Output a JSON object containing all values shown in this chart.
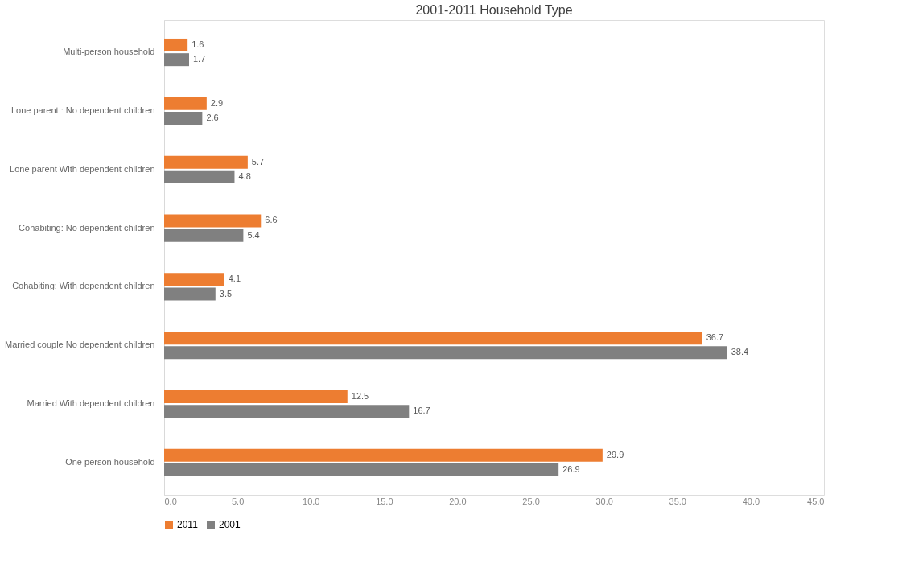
{
  "chart_data": {
    "type": "bar",
    "orientation": "horizontal",
    "title": "2001-2011 Household Type",
    "categories": [
      "Multi-person household",
      "Lone parent : No dependent children",
      "Lone parent With dependent children",
      "Cohabiting: No dependent children",
      "Cohabiting: With dependent children",
      "Married couple No dependent children",
      "Married  With dependent children",
      "One person household"
    ],
    "series": [
      {
        "name": "2011",
        "color": "#ed7d31",
        "values": [
          1.6,
          2.9,
          5.7,
          6.6,
          4.1,
          36.7,
          12.5,
          29.9
        ]
      },
      {
        "name": "2001",
        "color": "#808080",
        "values": [
          1.7,
          2.6,
          4.8,
          5.4,
          3.5,
          38.4,
          16.7,
          26.9
        ]
      }
    ],
    "xlim": [
      0,
      45
    ],
    "xticks": [
      {
        "value": 0,
        "label": "0.0"
      },
      {
        "value": 5,
        "label": "5.0"
      },
      {
        "value": 10,
        "label": "10.0"
      },
      {
        "value": 15,
        "label": "15.0"
      },
      {
        "value": 20,
        "label": "20.0"
      },
      {
        "value": 25,
        "label": "25.0"
      },
      {
        "value": 30,
        "label": "30.0"
      },
      {
        "value": 35,
        "label": "35.0"
      },
      {
        "value": 40,
        "label": "40.0"
      },
      {
        "value": 45,
        "label": "45.0"
      }
    ],
    "data_labels": true,
    "legend": "bottom",
    "grid": false
  }
}
